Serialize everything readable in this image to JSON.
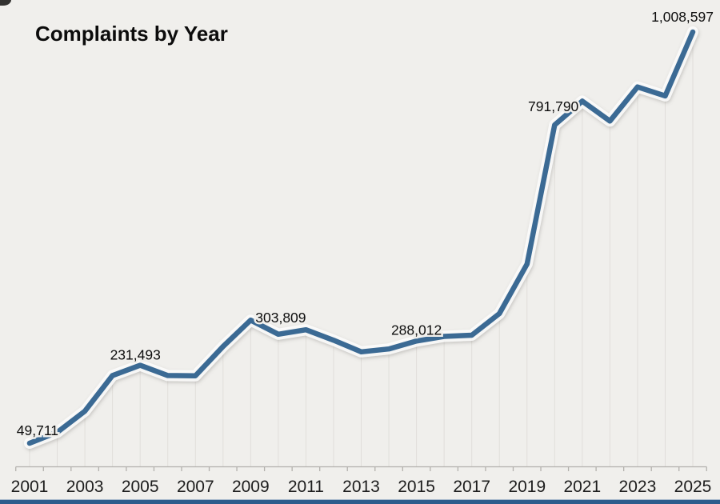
{
  "title": "Complaints by Year",
  "colors": {
    "background": "#f0efec",
    "line": "#3a6a94",
    "line_halo": "rgba(255,255,255,0.8)",
    "gridline": "#e0deda",
    "axis": "#b3b1ad",
    "year_label": "#1d1d1d",
    "data_label": "#0e0e0e",
    "title_text": "#0c0c0c",
    "bottom_strip": "#2d5c8c"
  },
  "chart_data": {
    "type": "line",
    "title": "Complaints by Year",
    "series_name": "Complaints",
    "x": [
      2001,
      2002,
      2003,
      2004,
      2005,
      2006,
      2007,
      2008,
      2009,
      2010,
      2011,
      2012,
      2013,
      2014,
      2015,
      2016,
      2017,
      2018,
      2019,
      2020,
      2021,
      2022,
      2023,
      2024,
      2025
    ],
    "values": [
      49711,
      75063,
      124509,
      207449,
      231493,
      207492,
      206884,
      275284,
      336655,
      303809,
      314246,
      289874,
      262813,
      269422,
      288012,
      298728,
      301580,
      351937,
      467361,
      791790,
      847376,
      800944,
      880418,
      859532,
      1008597
    ],
    "xlabel": "",
    "ylabel": "",
    "ylim": [
      49711,
      1008597
    ],
    "grid": "vertical drop lines from each point to x-axis",
    "legend": "none",
    "x_tick_labels": [
      "2001",
      "2003",
      "2005",
      "2007",
      "2009",
      "2011",
      "2013",
      "2015",
      "2017",
      "2019",
      "2021",
      "2023",
      "2025"
    ],
    "point_labels": [
      {
        "year": 2001,
        "text": "49,711"
      },
      {
        "year": 2005,
        "text": "231,493"
      },
      {
        "year": 2010,
        "text": "303,809"
      },
      {
        "year": 2015,
        "text": "288,012"
      },
      {
        "year": 2020,
        "text": "791,790"
      },
      {
        "year": 2025,
        "text": "1,008,597"
      }
    ]
  }
}
